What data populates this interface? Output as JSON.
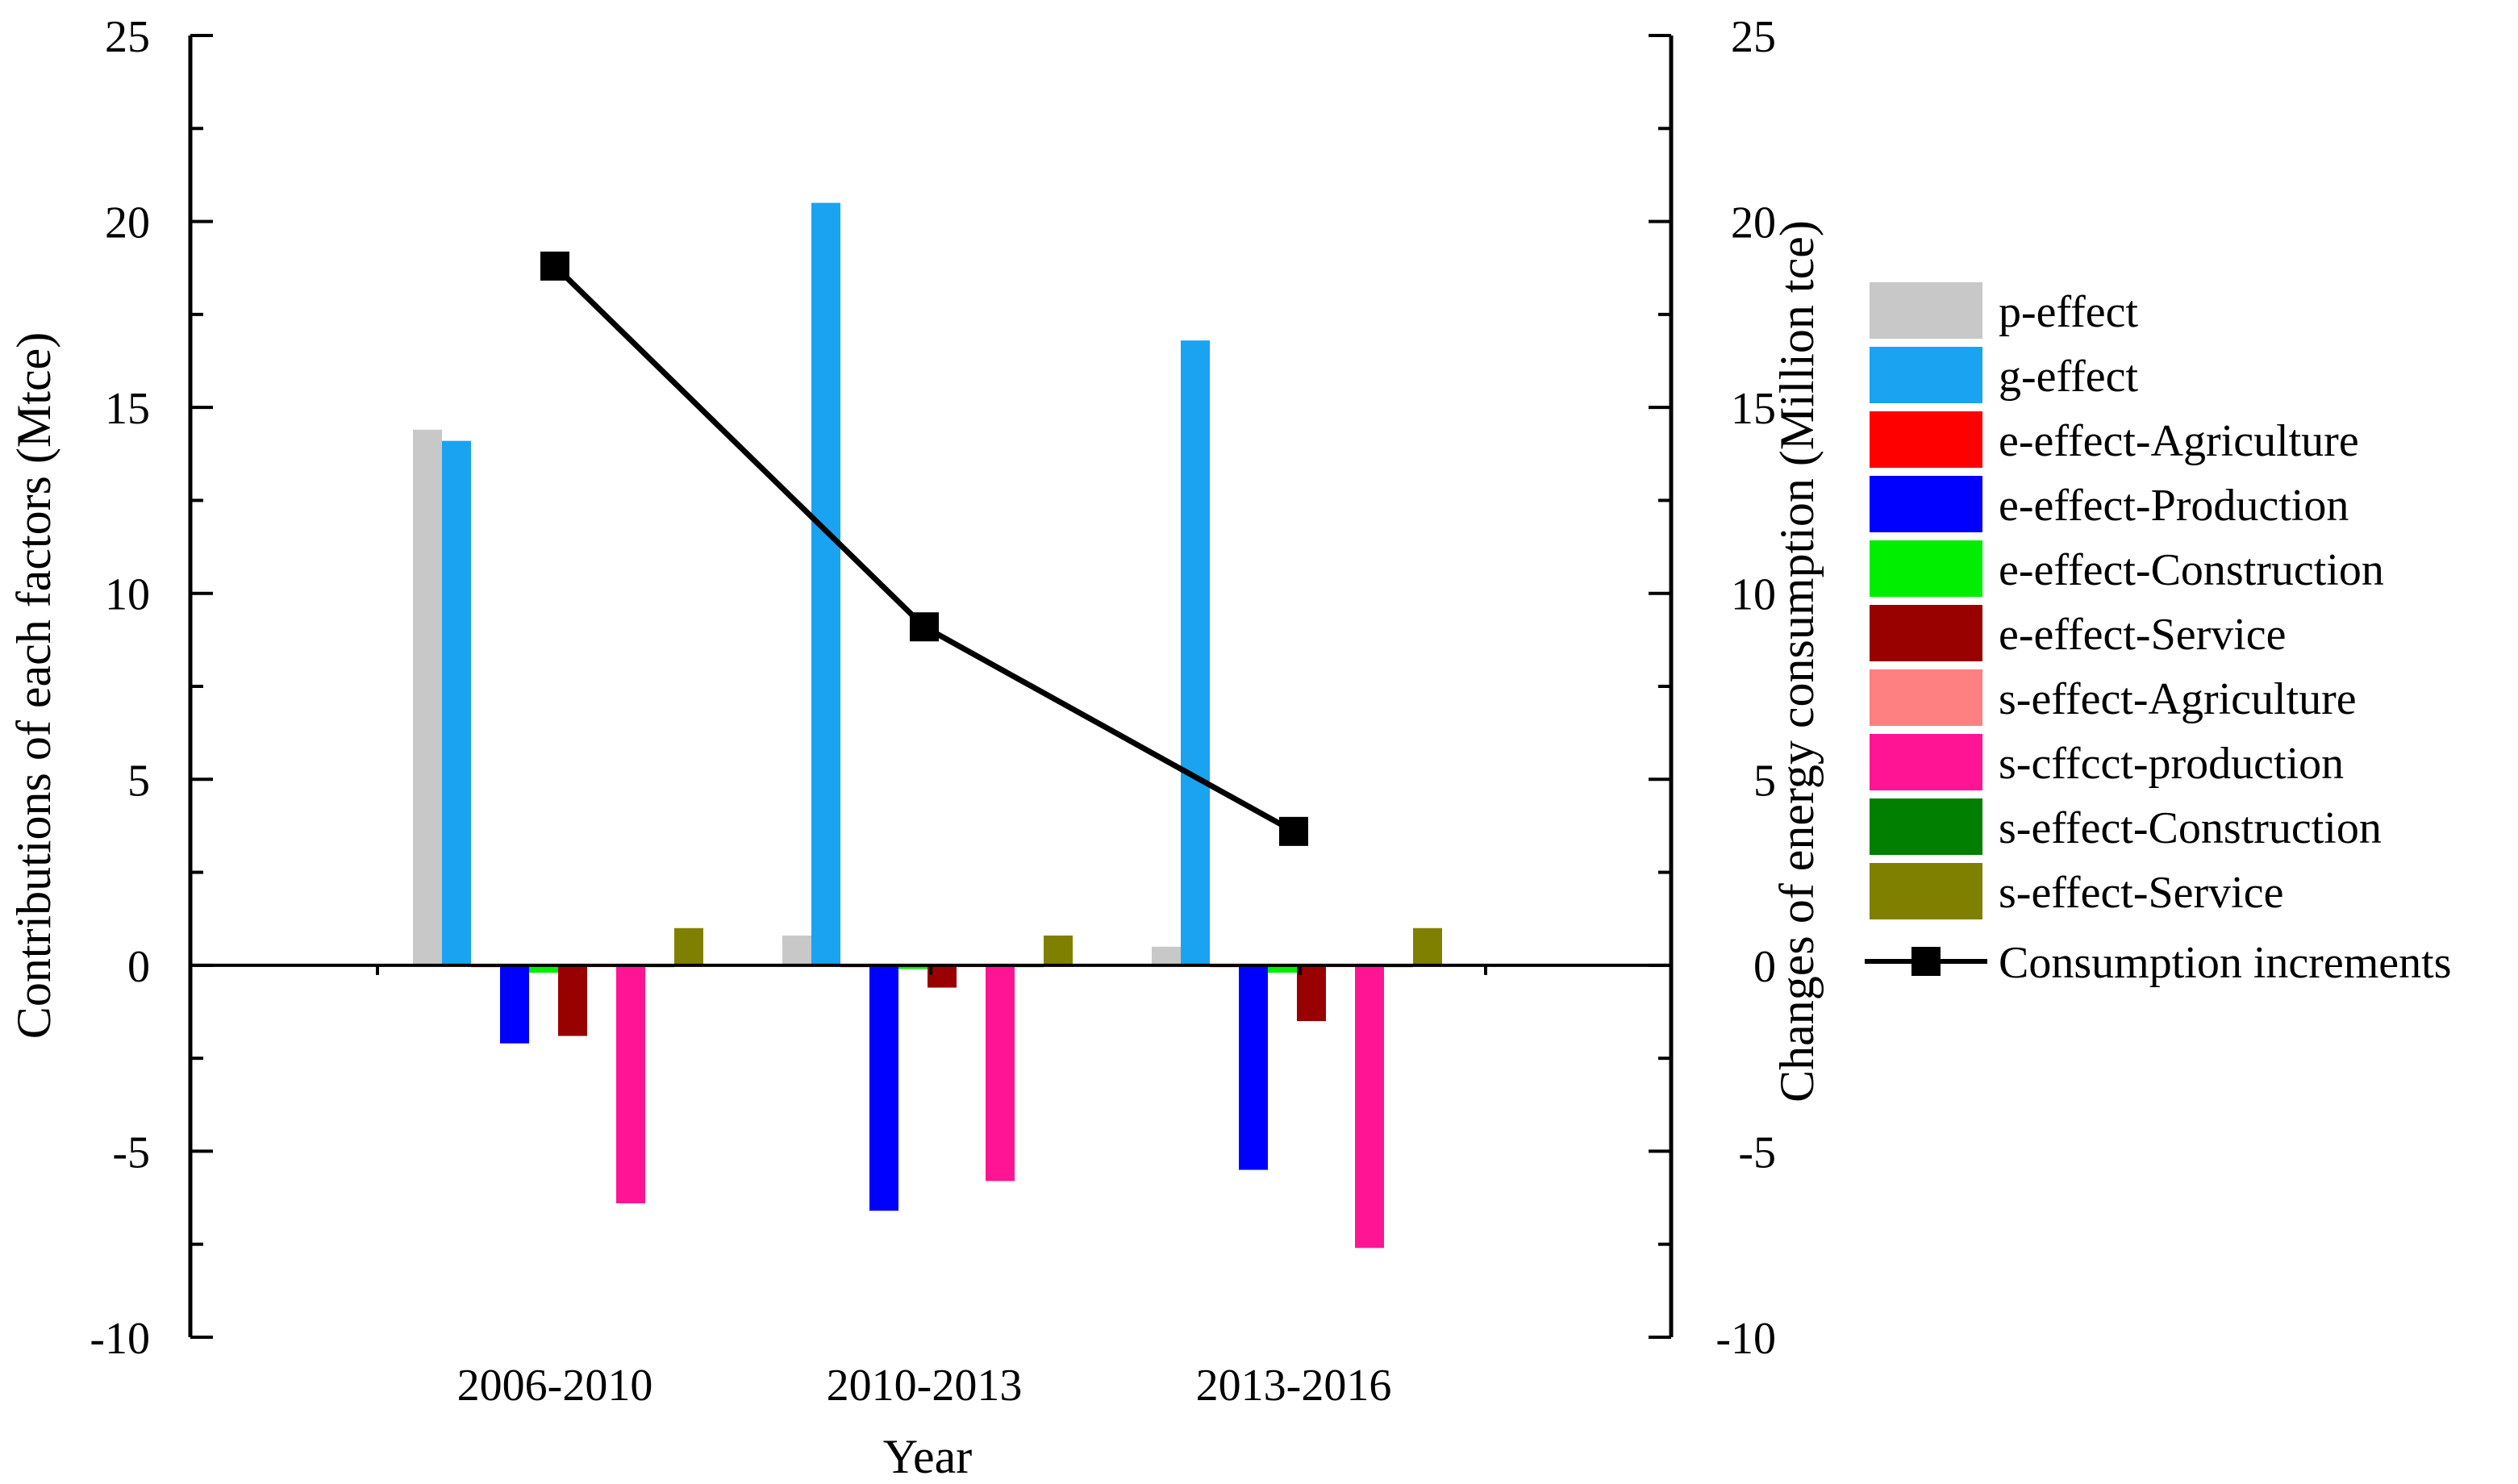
{
  "chart_data": {
    "type": "bar",
    "title": "",
    "xlabel": "Year",
    "ylabel": "Contributions of each factors (Mtce)",
    "y2label": "Changes of energy consumption (Million tce)",
    "ylim": [
      -10,
      25
    ],
    "y2lim": [
      -10,
      25
    ],
    "yticks": [
      -10,
      -5,
      0,
      5,
      10,
      15,
      20,
      25
    ],
    "y2ticks": [
      -10,
      -5,
      0,
      5,
      10,
      15,
      20,
      25
    ],
    "categories": [
      "2006-2010",
      "2010-2013",
      "2013-2016"
    ],
    "series": [
      {
        "name": "p-effect",
        "color": "#c8c8c8",
        "values": [
          14.4,
          0.8,
          0.5
        ]
      },
      {
        "name": "g-effect",
        "color": "#1aa3f0",
        "values": [
          14.1,
          20.5,
          16.8
        ]
      },
      {
        "name": "e-effect-Agriculture",
        "color": "#ff0000",
        "values": [
          -0.05,
          -0.05,
          -0.05
        ]
      },
      {
        "name": "e-effect-Production",
        "color": "#0000ff",
        "values": [
          -2.1,
          -6.6,
          -5.5
        ]
      },
      {
        "name": "e-effect-Construction",
        "color": "#00ee00",
        "values": [
          -0.2,
          -0.1,
          -0.2
        ]
      },
      {
        "name": "e-effect-Service",
        "color": "#990000",
        "values": [
          -1.9,
          -0.6,
          -1.5
        ]
      },
      {
        "name": "s-effect-Agriculture",
        "color": "#ff8080",
        "values": [
          -0.05,
          -0.05,
          -0.05
        ]
      },
      {
        "name": "s-cffcct-production",
        "color": "#ff1493",
        "values": [
          -6.4,
          -5.8,
          -7.6
        ]
      },
      {
        "name": "s-effect-Construction",
        "color": "#007f00",
        "values": [
          -0.05,
          -0.05,
          -0.05
        ]
      },
      {
        "name": "s-effect-Service",
        "color": "#808000",
        "values": [
          1.0,
          0.8,
          1.0
        ]
      }
    ],
    "line_series": {
      "name": "Consumption increments",
      "color": "#000000",
      "axis": "right",
      "values": [
        18.8,
        9.1,
        3.6
      ]
    },
    "legend_position": "right"
  }
}
